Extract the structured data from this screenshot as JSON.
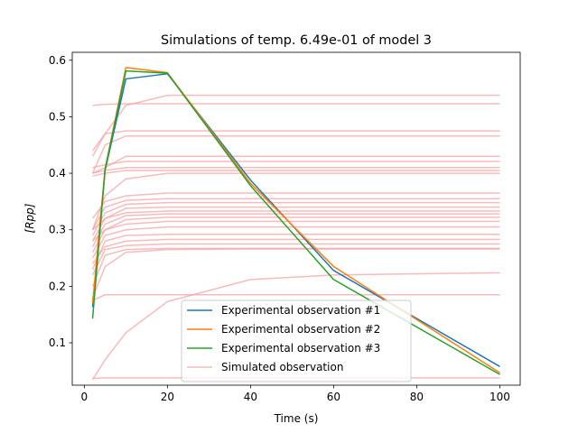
{
  "chart_data": {
    "type": "line",
    "title": "Simulations of temp. 6.49e-01 of model 3",
    "xlabel": "Time (s)",
    "ylabel": "[Rpp]",
    "xlim": [
      -2.9,
      104.9
    ],
    "ylim": [
      0.025,
      0.614
    ],
    "xticks": [
      0,
      20,
      40,
      60,
      80,
      100
    ],
    "yticks": [
      0.1,
      0.2,
      0.3,
      0.4,
      0.5,
      0.6
    ],
    "legend_position": "lower-center",
    "grid": false,
    "x": [
      2,
      5,
      10,
      20,
      40,
      60,
      100
    ],
    "series": [
      {
        "name": "Experimental observation #1",
        "color": "#1f77b4",
        "values": [
          0.163,
          0.405,
          0.567,
          0.576,
          0.388,
          0.228,
          0.058
        ]
      },
      {
        "name": "Experimental observation #2",
        "color": "#ff7f0e",
        "values": [
          0.17,
          0.408,
          0.587,
          0.578,
          0.382,
          0.235,
          0.047
        ]
      },
      {
        "name": "Experimental observation #3",
        "color": "#2ca02c",
        "values": [
          0.143,
          0.406,
          0.581,
          0.577,
          0.378,
          0.212,
          0.044
        ]
      }
    ],
    "simulated": {
      "name": "Simulated observation",
      "color": "#f4a4a4",
      "x": [
        2,
        5,
        10,
        20,
        40,
        60,
        100
      ],
      "curves": [
        [
          0.52,
          0.522,
          0.523,
          0.523,
          0.523,
          0.523,
          0.523
        ],
        [
          0.44,
          0.47,
          0.52,
          0.538,
          0.538,
          0.538,
          0.538
        ],
        [
          0.43,
          0.47,
          0.475,
          0.475,
          0.475,
          0.475,
          0.475
        ],
        [
          0.4,
          0.45,
          0.466,
          0.466,
          0.466,
          0.466,
          0.466
        ],
        [
          0.4,
          0.41,
          0.43,
          0.43,
          0.43,
          0.43,
          0.43
        ],
        [
          0.41,
          0.415,
          0.421,
          0.421,
          0.421,
          0.421,
          0.421
        ],
        [
          0.4,
          0.405,
          0.41,
          0.41,
          0.41,
          0.41,
          0.41
        ],
        [
          0.395,
          0.4,
          0.405,
          0.405,
          0.405,
          0.405,
          0.405
        ],
        [
          0.3,
          0.36,
          0.39,
          0.4,
          0.4,
          0.4,
          0.4
        ],
        [
          0.32,
          0.35,
          0.36,
          0.365,
          0.365,
          0.365,
          0.365
        ],
        [
          0.3,
          0.34,
          0.352,
          0.355,
          0.355,
          0.355,
          0.355
        ],
        [
          0.29,
          0.33,
          0.345,
          0.348,
          0.348,
          0.348,
          0.348
        ],
        [
          0.28,
          0.32,
          0.338,
          0.34,
          0.34,
          0.34,
          0.34
        ],
        [
          0.3,
          0.32,
          0.33,
          0.333,
          0.333,
          0.333,
          0.333
        ],
        [
          0.27,
          0.31,
          0.325,
          0.328,
          0.328,
          0.328,
          0.328
        ],
        [
          0.26,
          0.3,
          0.318,
          0.322,
          0.322,
          0.322,
          0.322
        ],
        [
          0.28,
          0.3,
          0.31,
          0.315,
          0.315,
          0.315,
          0.315
        ],
        [
          0.25,
          0.29,
          0.3,
          0.305,
          0.305,
          0.305,
          0.305
        ],
        [
          0.23,
          0.28,
          0.29,
          0.292,
          0.292,
          0.292,
          0.292
        ],
        [
          0.24,
          0.27,
          0.28,
          0.283,
          0.283,
          0.283,
          0.283
        ],
        [
          0.22,
          0.265,
          0.272,
          0.275,
          0.275,
          0.275,
          0.275
        ],
        [
          0.2,
          0.255,
          0.265,
          0.267,
          0.267,
          0.267,
          0.267
        ],
        [
          0.18,
          0.235,
          0.26,
          0.265,
          0.266,
          0.266,
          0.266
        ],
        [
          0.175,
          0.185,
          0.185,
          0.185,
          0.185,
          0.185,
          0.185
        ],
        [
          0.035,
          0.07,
          0.118,
          0.173,
          0.212,
          0.22,
          0.224
        ],
        [
          0.037,
          0.038,
          0.038,
          0.038,
          0.038,
          0.038,
          0.038
        ]
      ]
    }
  }
}
